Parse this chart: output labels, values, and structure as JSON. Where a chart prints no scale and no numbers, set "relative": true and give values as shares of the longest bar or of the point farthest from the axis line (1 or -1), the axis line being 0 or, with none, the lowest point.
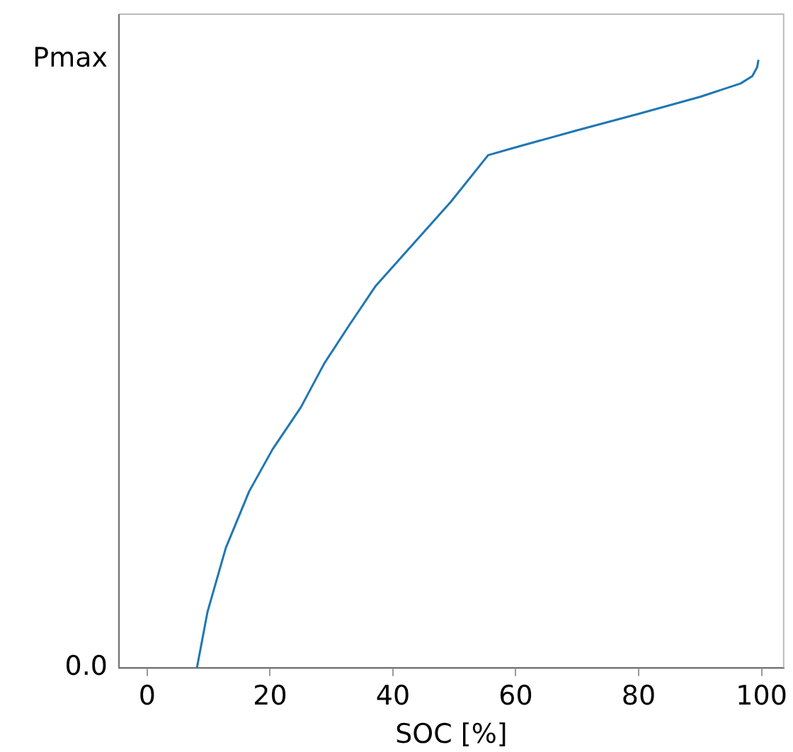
{
  "chart_data": {
    "type": "line",
    "relative": true,
    "xlabel": "SOC [%]",
    "xlim": [
      -4.6,
      103.6
    ],
    "xticks": [
      0,
      20,
      40,
      60,
      80,
      100
    ],
    "annotations": [
      "Pmax",
      "0.0"
    ],
    "grid": false,
    "legend": false,
    "marker": "none",
    "line_style": "solid",
    "series": [
      {
        "color": "#1f77b4",
        "x": [
          8.1,
          9.8,
          12.8,
          16.6,
          20.4,
          25.0,
          28.8,
          33.0,
          37.2,
          43.3,
          49.4,
          55.5,
          60,
          70,
          80,
          90,
          96.6,
          98.5,
          99.3,
          99.5
        ],
        "values": [
          0,
          0.091,
          0.197,
          0.29,
          0.359,
          0.428,
          0.5,
          0.565,
          0.628,
          0.697,
          0.766,
          0.843,
          0.856,
          0.884,
          0.911,
          0.939,
          0.961,
          0.973,
          0.988,
          1
        ]
      }
    ]
  }
}
